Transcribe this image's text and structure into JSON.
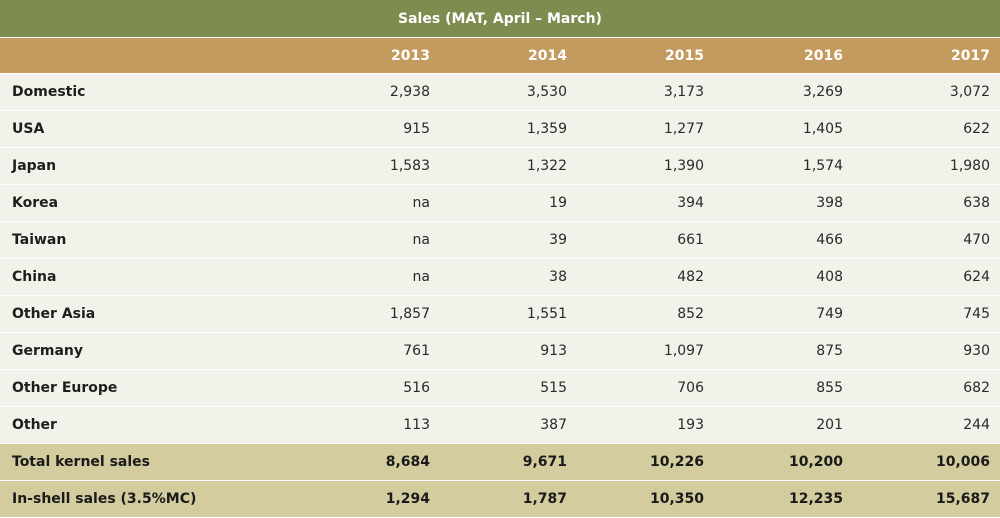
{
  "title": "Sales (MAT, April – March)",
  "columns": [
    "",
    "2013",
    "2014",
    "2015",
    "2016",
    "2017"
  ],
  "rows": [
    {
      "label": "Domestic",
      "values": [
        "2,938",
        "3,530",
        "3,173",
        "3,269",
        "3,072"
      ]
    },
    {
      "label": "USA",
      "values": [
        "915",
        "1,359",
        "1,277",
        "1,405",
        "622"
      ]
    },
    {
      "label": "Japan",
      "values": [
        "1,583",
        "1,322",
        "1,390",
        "1,574",
        "1,980"
      ]
    },
    {
      "label": "Korea",
      "values": [
        "na",
        "19",
        "394",
        "398",
        "638"
      ]
    },
    {
      "label": "Taiwan",
      "values": [
        "na",
        "39",
        "661",
        "466",
        "470"
      ]
    },
    {
      "label": "China",
      "values": [
        "na",
        "38",
        "482",
        "408",
        "624"
      ]
    },
    {
      "label": "Other Asia",
      "values": [
        "1,857",
        "1,551",
        "852",
        "749",
        "745"
      ]
    },
    {
      "label": "Germany",
      "values": [
        "761",
        "913",
        "1,097",
        "875",
        "930"
      ]
    },
    {
      "label": "Other Europe",
      "values": [
        "516",
        "515",
        "706",
        "855",
        "682"
      ]
    },
    {
      "label": "Other",
      "values": [
        "113",
        "387",
        "193",
        "201",
        "244"
      ]
    },
    {
      "label": "Total kernel sales",
      "values": [
        "8,684",
        "9,671",
        "10,226",
        "10,200",
        "10,006"
      ],
      "total": true
    },
    {
      "label": "In-shell sales (3.5%MC)",
      "values": [
        "1,294",
        "1,787",
        "10,350",
        "12,235",
        "15,687"
      ],
      "total": true
    }
  ],
  "colors": {
    "title_bar": "#7e8c4f",
    "header": "#c49b5f",
    "body": "#f2f1ea",
    "total_rows": "#d3cc9e"
  }
}
